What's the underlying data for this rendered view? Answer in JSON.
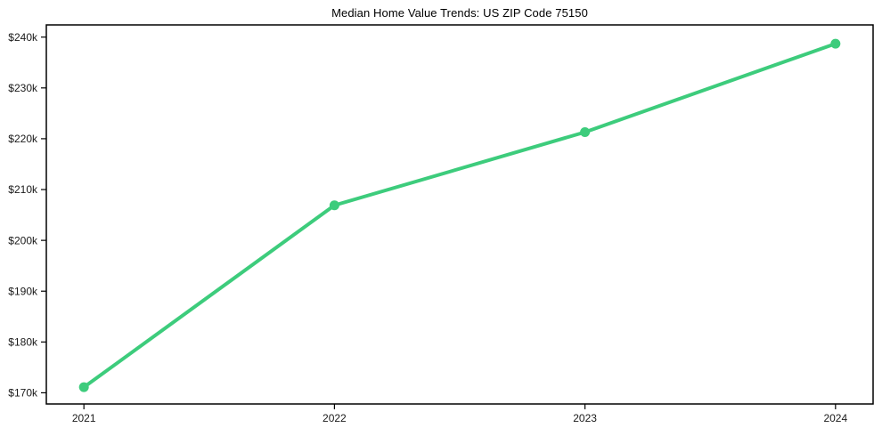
{
  "chart_data": {
    "type": "line",
    "title": "Median Home Value Trends: US ZIP Code 75150",
    "x": [
      2021,
      2022,
      2023,
      2024
    ],
    "series": [
      {
        "name": "Median home value",
        "values": [
          171100,
          206900,
          221300,
          238700
        ]
      }
    ],
    "xlabel": "",
    "ylabel": "",
    "xlim": [
      2020.85,
      2024.15
    ],
    "ylim": [
      167800,
      242400
    ],
    "x_ticks": [
      2021,
      2022,
      2023,
      2024
    ],
    "x_tick_labels": [
      "2021",
      "2022",
      "2023",
      "2024"
    ],
    "y_ticks": [
      170000,
      180000,
      190000,
      200000,
      210000,
      220000,
      230000,
      240000
    ],
    "y_tick_labels": [
      "$170k",
      "$180k",
      "$190k",
      "$200k",
      "$210k",
      "$220k",
      "$230k",
      "$240k"
    ],
    "grid": false,
    "legend": "none",
    "line_color": "#3dcc7c",
    "marker": "circle",
    "background_color": "#ffffff",
    "axis_color": "#000000",
    "tick_label_color": "#1a1a1a",
    "tick_label_font_size": 12
  }
}
